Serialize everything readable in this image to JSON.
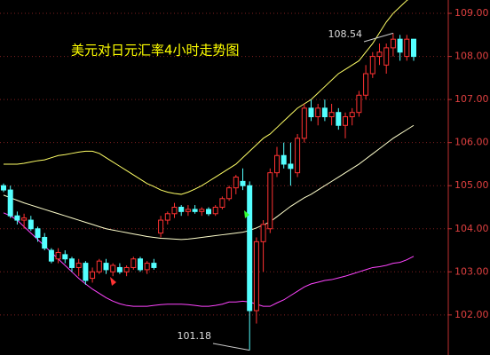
{
  "chart_data": {
    "type": "candlestick",
    "title": "美元对日元汇率4小时走势图",
    "open": [
      105.0,
      104.9,
      104.3,
      104.2,
      104.2,
      104.0,
      103.8,
      103.5,
      103.3,
      103.4,
      103.3,
      103.1,
      103.2,
      102.85,
      103.0,
      103.2,
      103.0,
      103.1,
      103.0,
      103.1,
      103.3,
      103.05,
      103.2,
      103.9,
      104.2,
      104.35,
      104.5,
      104.4,
      104.45,
      104.4,
      104.45,
      104.35,
      104.5,
      104.7,
      104.95,
      105.1,
      105.0,
      102.1,
      103.7,
      104.0,
      105.3,
      105.7,
      105.5,
      105.3,
      106.1,
      106.8,
      106.6,
      106.8,
      106.6,
      106.7,
      106.4,
      106.6,
      106.7,
      107.1,
      107.6,
      108.0,
      107.8,
      108.2,
      108.4,
      108.0,
      108.4
    ],
    "high": [
      105.05,
      105.0,
      104.4,
      104.35,
      104.3,
      104.05,
      103.9,
      103.55,
      103.55,
      103.5,
      103.35,
      103.3,
      103.25,
      103.1,
      103.3,
      103.3,
      103.2,
      103.2,
      103.15,
      103.35,
      103.35,
      103.25,
      103.3,
      104.3,
      104.4,
      104.6,
      104.55,
      104.55,
      104.55,
      104.5,
      104.5,
      104.55,
      104.75,
      105.0,
      105.25,
      105.4,
      105.1,
      103.8,
      104.2,
      105.4,
      105.9,
      106.0,
      106.0,
      106.2,
      106.9,
      107.0,
      106.9,
      107.0,
      106.9,
      106.8,
      106.7,
      106.8,
      107.2,
      107.8,
      108.1,
      108.3,
      108.3,
      108.54,
      108.5,
      108.5,
      108.4
    ],
    "low": [
      104.85,
      104.25,
      104.1,
      104.0,
      103.95,
      103.7,
      103.5,
      103.2,
      103.2,
      103.2,
      103.0,
      102.9,
      102.7,
      102.75,
      102.95,
      102.95,
      102.9,
      102.95,
      102.9,
      103.05,
      103.0,
      102.95,
      103.05,
      103.8,
      104.1,
      104.25,
      104.3,
      104.3,
      104.35,
      104.3,
      104.3,
      104.3,
      104.45,
      104.65,
      104.8,
      104.9,
      101.18,
      101.8,
      103.0,
      103.9,
      105.2,
      105.4,
      105.0,
      105.2,
      106.0,
      106.5,
      106.4,
      106.5,
      106.4,
      106.3,
      106.1,
      106.4,
      106.6,
      107.0,
      107.5,
      107.8,
      107.6,
      108.0,
      107.9,
      107.9,
      107.9
    ],
    "close": [
      104.9,
      104.3,
      104.2,
      104.25,
      104.0,
      103.8,
      103.55,
      103.25,
      103.45,
      103.3,
      103.1,
      103.2,
      102.8,
      103.0,
      103.25,
      103.05,
      103.15,
      103.0,
      103.1,
      103.3,
      103.05,
      103.2,
      103.1,
      104.2,
      104.35,
      104.5,
      104.4,
      104.45,
      104.4,
      104.45,
      104.35,
      104.5,
      104.7,
      104.95,
      105.2,
      105.0,
      102.1,
      103.7,
      104.1,
      105.3,
      105.7,
      105.5,
      105.4,
      106.1,
      106.8,
      106.6,
      106.8,
      106.6,
      106.7,
      106.4,
      106.6,
      106.7,
      107.1,
      107.6,
      108.0,
      108.1,
      108.2,
      108.4,
      108.1,
      108.4,
      108.0
    ],
    "up_color": "#ff3232",
    "down_color": "#54ffff",
    "bands": [
      {
        "color": "#ffff66",
        "values": [
          105.5,
          105.5,
          105.5,
          105.52,
          105.55,
          105.58,
          105.6,
          105.65,
          105.7,
          105.72,
          105.75,
          105.78,
          105.8,
          105.8,
          105.75,
          105.65,
          105.55,
          105.45,
          105.35,
          105.25,
          105.15,
          105.05,
          104.98,
          104.9,
          104.85,
          104.82,
          104.8,
          104.85,
          104.92,
          105.0,
          105.1,
          105.2,
          105.3,
          105.4,
          105.5,
          105.65,
          105.8,
          105.95,
          106.1,
          106.2,
          106.35,
          106.5,
          106.65,
          106.8,
          106.9,
          107.0,
          107.15,
          107.3,
          107.45,
          107.6,
          107.7,
          107.8,
          107.9,
          108.1,
          108.3,
          108.55,
          108.8,
          109.0,
          109.15,
          109.3,
          109.4
        ]
      },
      {
        "color": "#ffffcc",
        "values": [
          104.78,
          104.72,
          104.66,
          104.6,
          104.55,
          104.5,
          104.45,
          104.4,
          104.35,
          104.3,
          104.25,
          104.2,
          104.15,
          104.1,
          104.05,
          104.0,
          103.97,
          103.94,
          103.91,
          103.88,
          103.85,
          103.82,
          103.8,
          103.78,
          103.77,
          103.76,
          103.75,
          103.76,
          103.78,
          103.8,
          103.82,
          103.84,
          103.86,
          103.88,
          103.9,
          103.92,
          103.96,
          104.02,
          104.09,
          104.16,
          104.28,
          104.4,
          104.52,
          104.62,
          104.72,
          104.8,
          104.9,
          105.0,
          105.1,
          105.2,
          105.3,
          105.4,
          105.5,
          105.62,
          105.74,
          105.86,
          105.98,
          106.1,
          106.2,
          106.3,
          106.4
        ]
      },
      {
        "color": "#ff44ff",
        "values": [
          104.37,
          104.3,
          104.2,
          104.05,
          103.9,
          103.75,
          103.6,
          103.45,
          103.3,
          103.15,
          103.0,
          102.85,
          102.72,
          102.6,
          102.5,
          102.4,
          102.32,
          102.26,
          102.22,
          102.2,
          102.2,
          102.2,
          102.22,
          102.24,
          102.25,
          102.25,
          102.25,
          102.24,
          102.22,
          102.2,
          102.2,
          102.22,
          102.25,
          102.3,
          102.3,
          102.32,
          102.3,
          102.25,
          102.2,
          102.2,
          102.28,
          102.35,
          102.45,
          102.55,
          102.65,
          102.72,
          102.76,
          102.8,
          102.82,
          102.86,
          102.9,
          102.95,
          103.0,
          103.05,
          103.1,
          103.12,
          103.15,
          103.2,
          103.22,
          103.28,
          103.36
        ]
      }
    ],
    "ylim": [
      101.07,
      109.31
    ],
    "yticks": [
      {
        "value": 102,
        "label": "102.00"
      },
      {
        "value": 103,
        "label": "103.00"
      },
      {
        "value": 104,
        "label": "104.00"
      },
      {
        "value": 105,
        "label": "105.00"
      },
      {
        "value": 106,
        "label": "106.00"
      },
      {
        "value": 107,
        "label": "107.00"
      },
      {
        "value": 108,
        "label": "108.00"
      },
      {
        "value": 109,
        "label": "109.00"
      }
    ],
    "grid": true,
    "high_label": {
      "value": 108.54,
      "label": "108.54"
    },
    "low_label": {
      "value": 101.18,
      "label": "101.18"
    }
  }
}
